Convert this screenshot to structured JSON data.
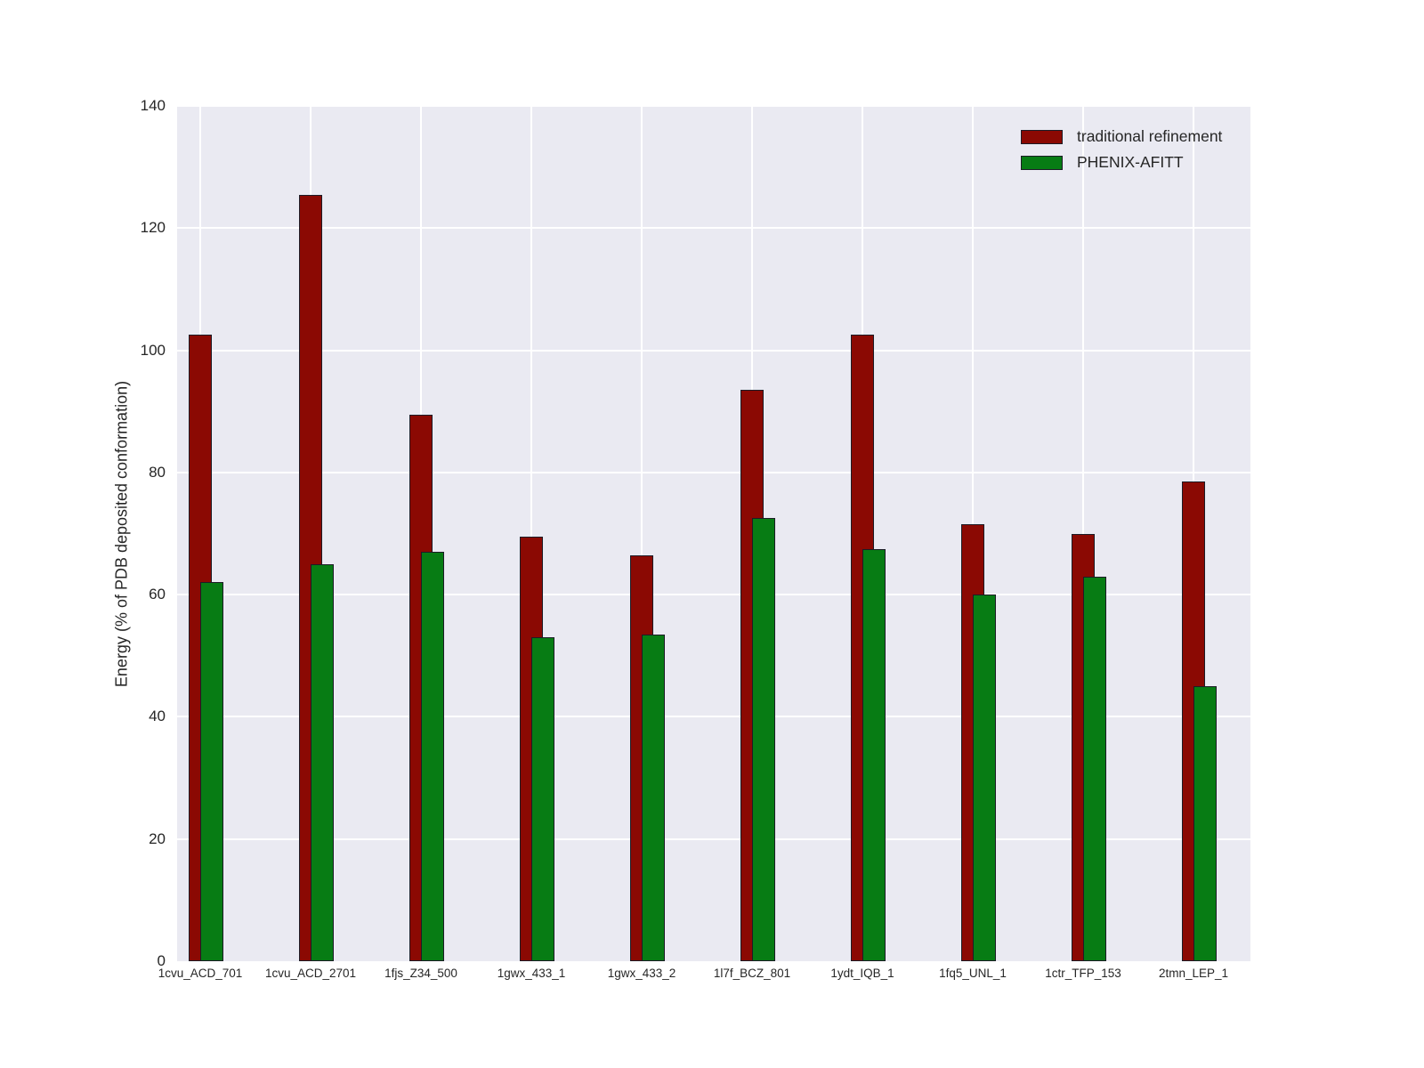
{
  "chart_data": {
    "type": "bar",
    "title": "",
    "xlabel": "",
    "ylabel": "Energy (% of PDB deposited conformation)",
    "ylim": [
      0,
      140
    ],
    "y_ticks": [
      0,
      20,
      40,
      60,
      80,
      100,
      120,
      140
    ],
    "grid": "both horizontal and vertical white gridlines on light panel",
    "legend_position": "upper right",
    "categories": [
      "1cvu_ACD_701",
      "1cvu_ACD_2701",
      "1fjs_Z34_500",
      "1gwx_433_1",
      "1gwx_433_2",
      "1l7f_BCZ_801",
      "1ydt_IQB_1",
      "1fq5_UNL_1",
      "1ctr_TFP_153",
      "2tmn_LEP_1"
    ],
    "series": [
      {
        "name": "traditional refinement",
        "color": "#8b0903",
        "values": [
          102.5,
          125.5,
          89.5,
          69.5,
          66.5,
          93.5,
          102.5,
          71.5,
          70,
          78.5
        ]
      },
      {
        "name": "PHENIX-AFITT",
        "color": "#077c14",
        "values": [
          62,
          65,
          67,
          53,
          53.5,
          72.5,
          67.5,
          60,
          63,
          45
        ]
      }
    ],
    "colors": {
      "plot_background": "#eaeaf2",
      "figure_background": "#ffffff",
      "gridline": "#ffffff",
      "bar_edge": "#1c1c26",
      "tick_text": "#262626"
    }
  }
}
